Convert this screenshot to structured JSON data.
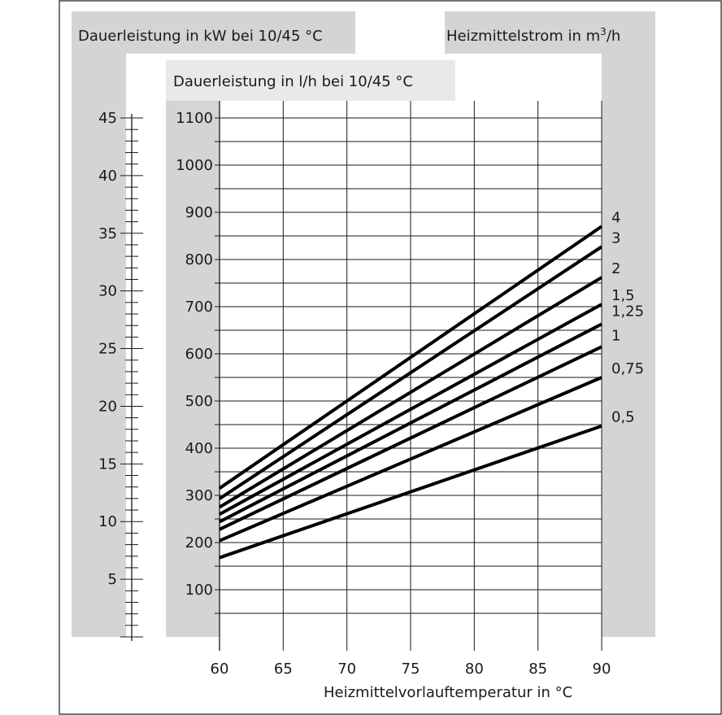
{
  "chart_data": {
    "type": "line",
    "left_axis_title": "Dauerleistung in kW bei 10/45 °C",
    "right_axis_title_prefix": "Heizmittelstrom in m",
    "right_axis_title_sup": "3",
    "right_axis_title_suffix": "/h",
    "y_axis_title": "Dauerleistung in l/h bei 10/45 °C",
    "x_axis_title": "Heizmittelvorlauftemperatur in °C",
    "x_ticks": [
      60,
      65,
      70,
      75,
      80,
      85,
      90
    ],
    "x_tick_labels": [
      "60",
      "65",
      "70",
      "75",
      "80",
      "85",
      "90"
    ],
    "xlim": [
      60,
      90
    ],
    "y_ticks": [
      100,
      200,
      300,
      400,
      500,
      600,
      700,
      800,
      900,
      1000,
      1100
    ],
    "y_tick_labels": [
      "100",
      "200",
      "300",
      "400",
      "500",
      "600",
      "700",
      "800",
      "900",
      "1000",
      "1100"
    ],
    "ylim": [
      0,
      1100
    ],
    "kw_ticks": [
      5,
      10,
      15,
      20,
      25,
      30,
      35,
      40,
      45
    ],
    "kw_tick_labels": [
      "5",
      "10",
      "15",
      "20",
      "25",
      "30",
      "35",
      "40",
      "45"
    ],
    "kw_lim": [
      0,
      45
    ],
    "grid": true,
    "series": [
      {
        "name": "4",
        "x": [
          60,
          90
        ],
        "y": [
          315,
          870
        ]
      },
      {
        "name": "3",
        "x": [
          60,
          90
        ],
        "y": [
          293,
          827
        ]
      },
      {
        "name": "2",
        "x": [
          60,
          90
        ],
        "y": [
          275,
          762
        ]
      },
      {
        "name": "1,5",
        "x": [
          60,
          90
        ],
        "y": [
          260,
          705
        ]
      },
      {
        "name": "1,25",
        "x": [
          60,
          90
        ],
        "y": [
          244,
          663
        ]
      },
      {
        "name": "1",
        "x": [
          60,
          90
        ],
        "y": [
          228,
          615
        ]
      },
      {
        "name": "0,75",
        "x": [
          60,
          90
        ],
        "y": [
          204,
          550
        ]
      },
      {
        "name": "0,5",
        "x": [
          60,
          90
        ],
        "y": [
          168,
          447
        ]
      }
    ],
    "line_color": "#000000",
    "band_color": "#d4d4d4"
  }
}
